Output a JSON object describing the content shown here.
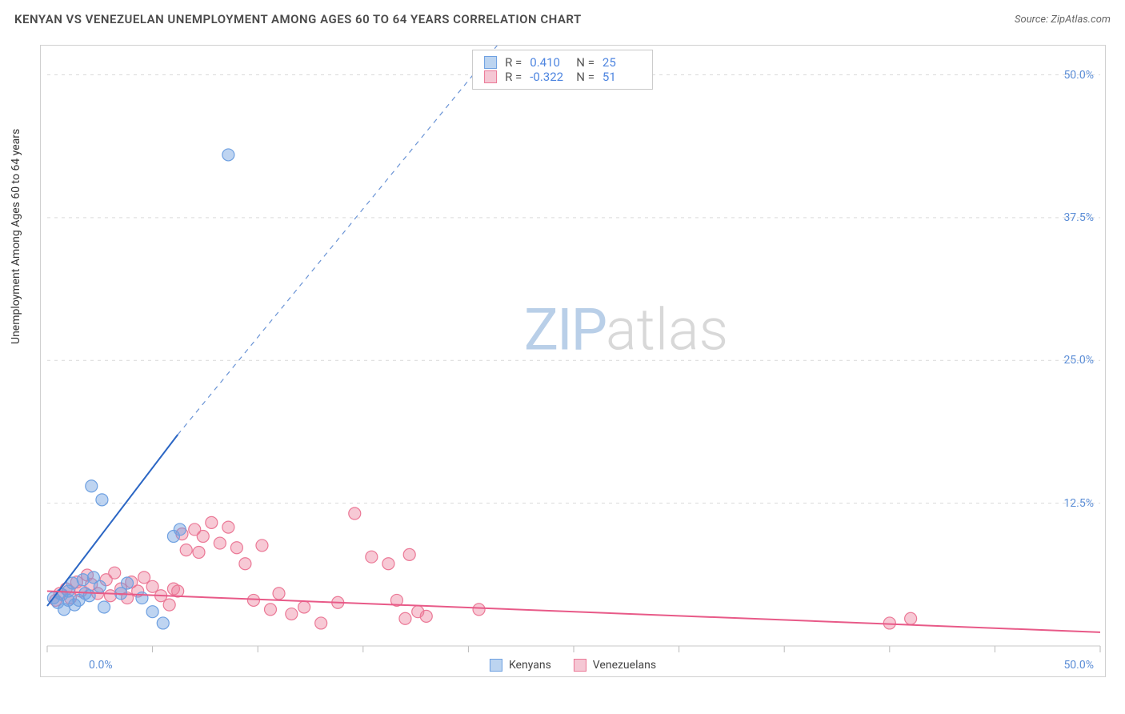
{
  "header": {
    "title": "KENYAN VS VENEZUELAN UNEMPLOYMENT AMONG AGES 60 TO 64 YEARS CORRELATION CHART",
    "source": "Source: ZipAtlas.com"
  },
  "axes": {
    "y_label": "Unemployment Among Ages 60 to 64 years",
    "x_min": 0,
    "x_max": 50,
    "y_min": 0,
    "y_max": 52,
    "y_ticks": [
      12.5,
      25.0,
      37.5,
      50.0
    ],
    "y_tick_labels": [
      "12.5%",
      "25.0%",
      "37.5%",
      "50.0%"
    ],
    "x_tick_left": "0.0%",
    "x_tick_right": "50.0%",
    "grid_color": "#d9d9d9",
    "axis_color": "#c8c8c8",
    "tick_marks_x": [
      0,
      5,
      10,
      15,
      20,
      25,
      30,
      35,
      40,
      45,
      50
    ]
  },
  "watermark": {
    "part1": "ZIP",
    "part2": "atlas"
  },
  "series": {
    "kenyans": {
      "label": "Kenyans",
      "color_fill": "rgba(110,160,225,0.45)",
      "color_stroke": "#6ea0e1",
      "swatch_fill": "#bcd4f0",
      "swatch_border": "#6ea0e1",
      "R": "0.410",
      "N": "25",
      "trend": {
        "x1": 0,
        "y1": 3.5,
        "x2": 6.2,
        "y2": 18.5,
        "dash_x2": 22,
        "dash_y2": 54,
        "color": "#2b66c4",
        "width": 2
      },
      "points": [
        [
          0.3,
          4.2
        ],
        [
          0.5,
          3.8
        ],
        [
          0.7,
          4.5
        ],
        [
          0.8,
          3.2
        ],
        [
          1.0,
          4.8
        ],
        [
          1.2,
          5.5
        ],
        [
          1.3,
          3.6
        ],
        [
          1.5,
          4.0
        ],
        [
          1.7,
          5.8
        ],
        [
          2.0,
          4.4
        ],
        [
          2.2,
          6.0
        ],
        [
          2.5,
          5.2
        ],
        [
          2.7,
          3.4
        ],
        [
          2.1,
          14.0
        ],
        [
          2.6,
          12.8
        ],
        [
          3.5,
          4.6
        ],
        [
          3.8,
          5.5
        ],
        [
          4.5,
          4.2
        ],
        [
          5.0,
          3.0
        ],
        [
          5.5,
          2.0
        ],
        [
          6.0,
          9.6
        ],
        [
          6.3,
          10.2
        ],
        [
          1.0,
          4.0
        ],
        [
          1.8,
          4.6
        ],
        [
          8.6,
          43.0
        ]
      ]
    },
    "venezuelans": {
      "label": "Venezuelans",
      "color_fill": "rgba(235,120,150,0.40)",
      "color_stroke": "#eb7896",
      "swatch_fill": "#f5c7d4",
      "swatch_border": "#eb7896",
      "R": "-0.322",
      "N": "51",
      "trend": {
        "x1": 0,
        "y1": 4.8,
        "x2": 50,
        "y2": 1.2,
        "color": "#e85a88",
        "width": 2
      },
      "points": [
        [
          0.4,
          4.0
        ],
        [
          0.6,
          4.6
        ],
        [
          0.9,
          5.0
        ],
        [
          1.1,
          4.2
        ],
        [
          1.4,
          5.6
        ],
        [
          1.6,
          4.8
        ],
        [
          1.9,
          6.2
        ],
        [
          2.1,
          5.4
        ],
        [
          2.4,
          4.6
        ],
        [
          2.8,
          5.8
        ],
        [
          3.0,
          4.4
        ],
        [
          3.2,
          6.4
        ],
        [
          3.5,
          5.0
        ],
        [
          3.8,
          4.2
        ],
        [
          4.0,
          5.6
        ],
        [
          4.3,
          4.8
        ],
        [
          4.6,
          6.0
        ],
        [
          5.0,
          5.2
        ],
        [
          5.4,
          4.4
        ],
        [
          5.8,
          3.6
        ],
        [
          6.2,
          4.8
        ],
        [
          6.6,
          8.4
        ],
        [
          7.0,
          10.2
        ],
        [
          7.4,
          9.6
        ],
        [
          7.8,
          10.8
        ],
        [
          8.2,
          9.0
        ],
        [
          8.6,
          10.4
        ],
        [
          9.0,
          8.6
        ],
        [
          9.4,
          7.2
        ],
        [
          9.8,
          4.0
        ],
        [
          10.2,
          8.8
        ],
        [
          10.6,
          3.2
        ],
        [
          11.0,
          4.6
        ],
        [
          11.6,
          2.8
        ],
        [
          12.2,
          3.4
        ],
        [
          13.0,
          2.0
        ],
        [
          13.8,
          3.8
        ],
        [
          14.6,
          11.6
        ],
        [
          15.4,
          7.8
        ],
        [
          16.2,
          7.2
        ],
        [
          16.6,
          4.0
        ],
        [
          17.0,
          2.4
        ],
        [
          17.2,
          8.0
        ],
        [
          17.6,
          3.0
        ],
        [
          18.0,
          2.6
        ],
        [
          20.5,
          3.2
        ],
        [
          40.0,
          2.0
        ],
        [
          41.0,
          2.4
        ],
        [
          6.0,
          5.0
        ],
        [
          6.4,
          9.8
        ],
        [
          7.2,
          8.2
        ]
      ]
    }
  },
  "stats_labels": {
    "R": "R =",
    "N": "N ="
  },
  "legend": {
    "bottom_items": [
      "kenyans",
      "venezuelans"
    ]
  },
  "style": {
    "marker_radius": 7.5,
    "marker_stroke_width": 1.2,
    "y_tick_color": "#5b8dd6",
    "title_color": "#4a4a4a"
  }
}
